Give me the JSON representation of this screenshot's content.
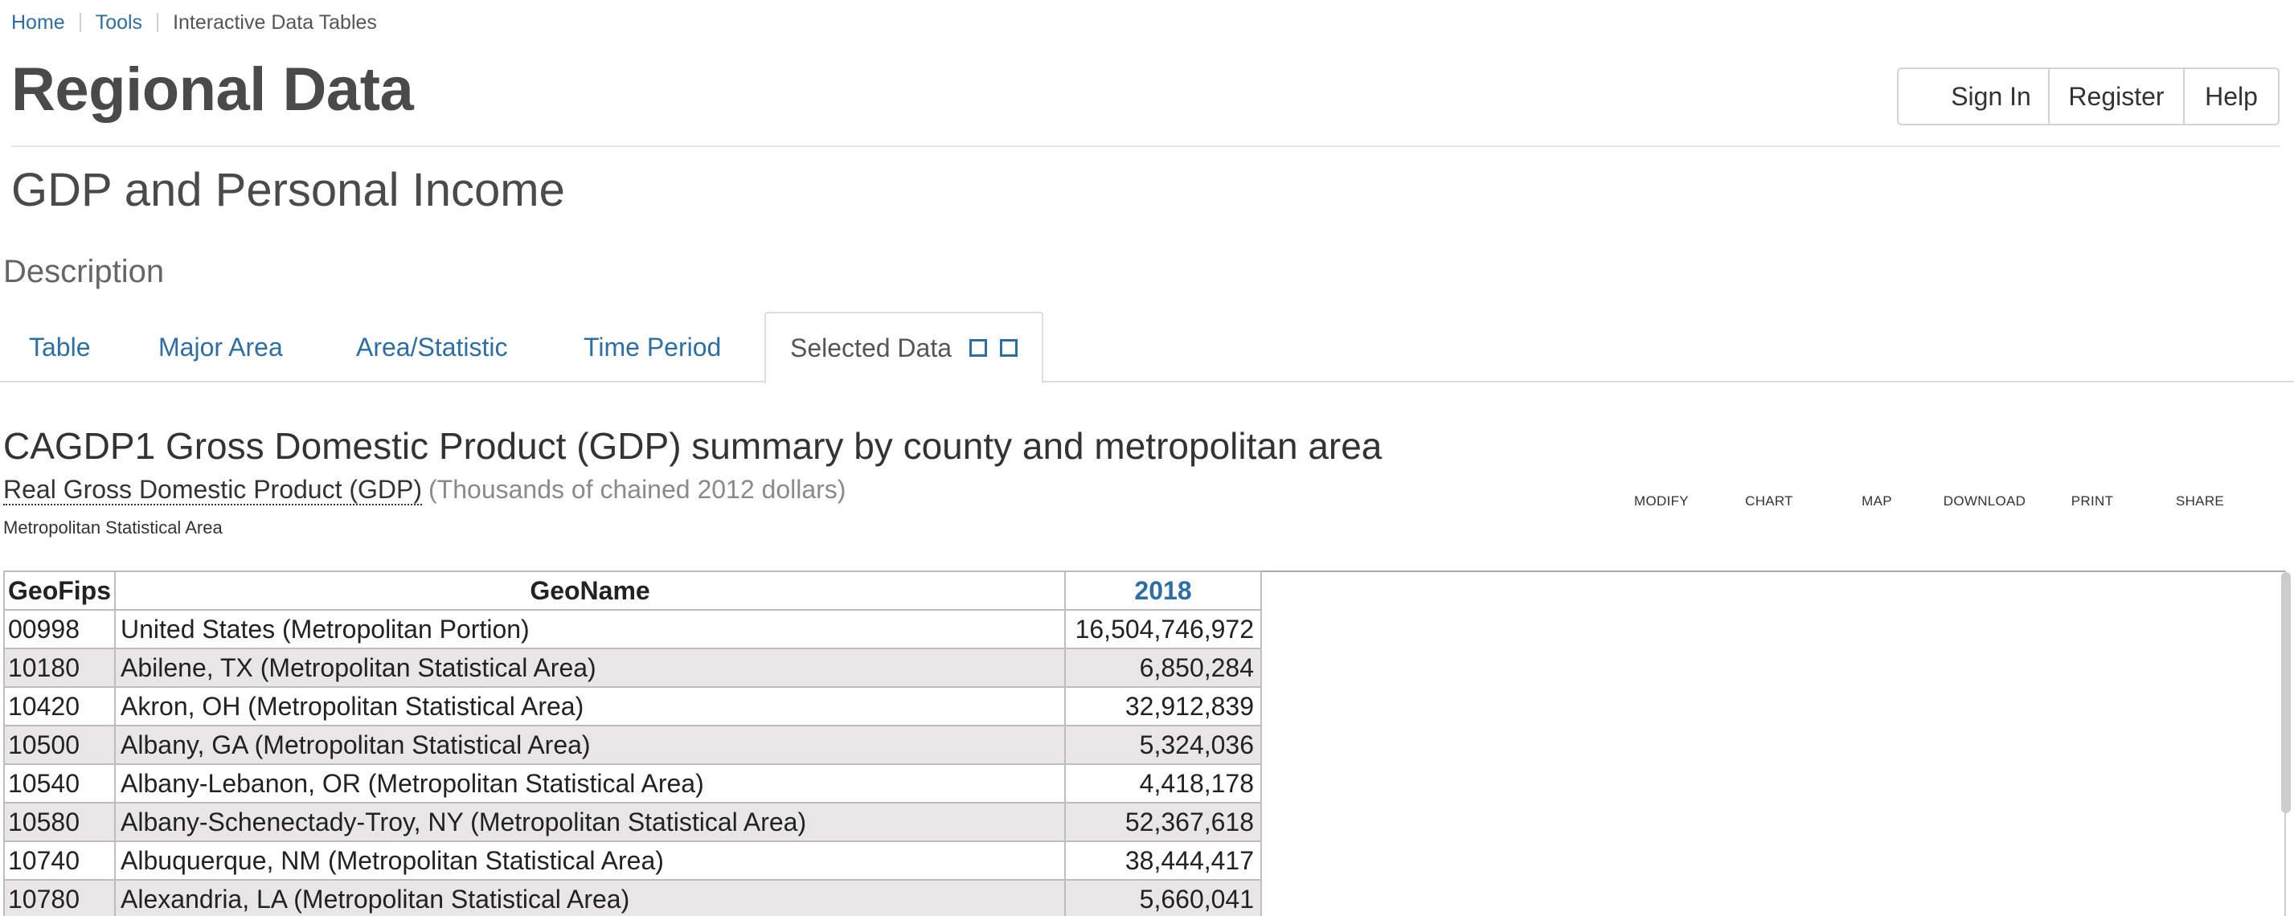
{
  "breadcrumb": {
    "home": "Home",
    "tools": "Tools",
    "current": "Interactive Data Tables"
  },
  "header": {
    "title": "Regional Data",
    "sign_in": "Sign In",
    "register": "Register",
    "help": "Help"
  },
  "subtitle": "GDP and Personal Income",
  "description": "Description",
  "tabs": [
    {
      "label": "Table"
    },
    {
      "label": "Major Area"
    },
    {
      "label": "Area/Statistic"
    },
    {
      "label": "Time Period"
    },
    {
      "label": "Selected Data"
    }
  ],
  "report": {
    "title": "CAGDP1 Gross Domestic Product (GDP) summary by county and metropolitan area",
    "measure": "Real Gross Domestic Product (GDP)",
    "units": "(Thousands of chained 2012 dollars)",
    "area": "Metropolitan Statistical Area"
  },
  "toolbar": {
    "modify": "MODIFY",
    "chart": "CHART",
    "map": "MAP",
    "download": "DOWNLOAD",
    "print": "PRINT",
    "share": "SHARE"
  },
  "table": {
    "headers": {
      "geofips": "GeoFips",
      "geoname": "GeoName",
      "year": "2018"
    },
    "rows": [
      {
        "fips": "00998",
        "name": "United States (Metropolitan Portion)",
        "value": "16,504,746,972"
      },
      {
        "fips": "10180",
        "name": "Abilene, TX (Metropolitan Statistical Area)",
        "value": "6,850,284"
      },
      {
        "fips": "10420",
        "name": "Akron, OH (Metropolitan Statistical Area)",
        "value": "32,912,839"
      },
      {
        "fips": "10500",
        "name": "Albany, GA (Metropolitan Statistical Area)",
        "value": "5,324,036"
      },
      {
        "fips": "10540",
        "name": "Albany-Lebanon, OR (Metropolitan Statistical Area)",
        "value": "4,418,178"
      },
      {
        "fips": "10580",
        "name": "Albany-Schenectady-Troy, NY (Metropolitan Statistical Area)",
        "value": "52,367,618"
      },
      {
        "fips": "10740",
        "name": "Albuquerque, NM (Metropolitan Statistical Area)",
        "value": "38,444,417"
      },
      {
        "fips": "10780",
        "name": "Alexandria, LA (Metropolitan Statistical Area)",
        "value": "5,660,041"
      }
    ]
  }
}
